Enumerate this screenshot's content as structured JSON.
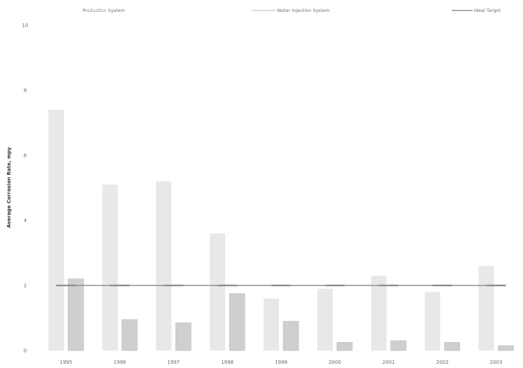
{
  "chart_data": {
    "type": "bar",
    "title": "",
    "xlabel": "",
    "ylabel": "Average Corrosion Rate, mpy",
    "categories": [
      "1995",
      "1996",
      "1997",
      "1998",
      "1999",
      "2000",
      "2001",
      "2002",
      "2003"
    ],
    "series": [
      {
        "name": "Production System",
        "kind": "bar",
        "color": "#e8e8e8",
        "values": [
          7.4,
          5.1,
          5.2,
          3.6,
          1.6,
          1.9,
          2.3,
          1.8,
          2.6
        ]
      },
      {
        "name": "Water Injection System",
        "kind": "bar",
        "color": "#cfcfcf",
        "values": [
          2.2,
          0.95,
          0.85,
          1.75,
          0.9,
          0.25,
          0.3,
          0.25,
          0.15
        ]
      },
      {
        "name": "Ideal Target",
        "kind": "line",
        "color": "#8f8f8f",
        "values": [
          2,
          2,
          2,
          2,
          2,
          2,
          2,
          2,
          2
        ]
      }
    ],
    "yticks": [
      "0",
      "2",
      "4",
      "6",
      "8",
      "10"
    ],
    "ylim": [
      0,
      10
    ],
    "grid": false,
    "legend_position": "top"
  }
}
